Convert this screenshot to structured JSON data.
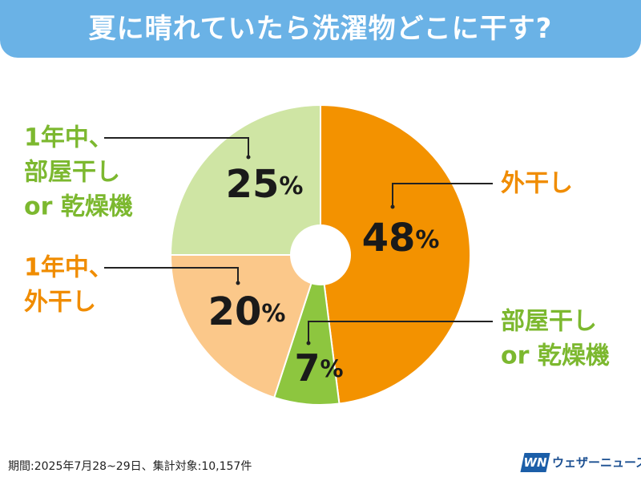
{
  "title": "夏に晴れていたら洗濯物どこに干す?",
  "footnote": "期間:2025年7月28~29日、集計対象:10,157件",
  "logo": {
    "mark": "WN",
    "text": "ウェザーニュース"
  },
  "colors": {
    "header_bg": "#6ab2e6",
    "label_orange": "#f08c00",
    "label_green": "#7cb82f"
  },
  "chart_data": {
    "type": "pie",
    "title": "夏に晴れていたら洗濯物どこに干す?",
    "unit": "%",
    "start": "top, clockwise",
    "slices": [
      {
        "label": [
          "外干し"
        ],
        "value": 48,
        "color": "#f39200",
        "label_color": "#f08c00"
      },
      {
        "label": [
          "部屋干し",
          "or 乾燥機"
        ],
        "value": 7,
        "color": "#8dc63f",
        "label_color": "#7cb82f"
      },
      {
        "label": [
          "1年中、",
          "外干し"
        ],
        "value": 20,
        "color": "#fbc88a",
        "label_color": "#f08c00"
      },
      {
        "label": [
          "1年中、",
          "部屋干し",
          "or 乾燥機"
        ],
        "value": 25,
        "color": "#cfe5a4",
        "label_color": "#7cb82f"
      }
    ]
  }
}
